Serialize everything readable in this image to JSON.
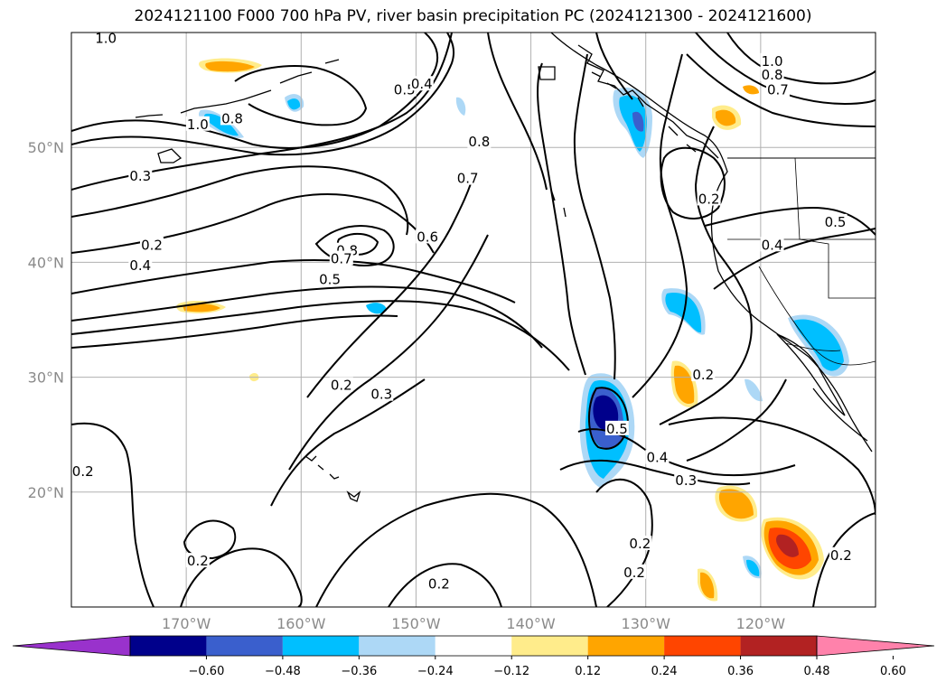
{
  "title": "2024121100 F000 700 hPa PV, river basin precipitation PC (2024121300 - 2024121600)",
  "map": {
    "lon_range": [
      -180,
      -110
    ],
    "lat_range": [
      10,
      60
    ],
    "lat_ticks": [
      {
        "value": 50,
        "label": "50°N"
      },
      {
        "value": 40,
        "label": "40°N"
      },
      {
        "value": 30,
        "label": "30°N"
      },
      {
        "value": 20,
        "label": "20°N"
      }
    ],
    "lon_ticks": [
      {
        "value": -170,
        "label": "170°W"
      },
      {
        "value": -160,
        "label": "160°W"
      },
      {
        "value": -150,
        "label": "150°W"
      },
      {
        "value": -140,
        "label": "140°W"
      },
      {
        "value": -130,
        "label": "130°W"
      },
      {
        "value": -120,
        "label": "120°W"
      }
    ],
    "grid": true,
    "contour_labels": [
      {
        "text": "1.0",
        "lon": -177,
        "lat": 59.5
      },
      {
        "text": "1.0",
        "lon": -169,
        "lat": 52
      },
      {
        "text": "0.8",
        "lon": -166,
        "lat": 52.5
      },
      {
        "text": "0.5",
        "lon": -151,
        "lat": 55
      },
      {
        "text": "0.4",
        "lon": -149.5,
        "lat": 55.5
      },
      {
        "text": "0.8",
        "lon": -144.5,
        "lat": 50.5
      },
      {
        "text": "0.7",
        "lon": -145.5,
        "lat": 47.3
      },
      {
        "text": "0.3",
        "lon": -174,
        "lat": 47.5
      },
      {
        "text": "0.2",
        "lon": -173,
        "lat": 41.5
      },
      {
        "text": "0.4",
        "lon": -174,
        "lat": 39.7
      },
      {
        "text": "0.8",
        "lon": -156,
        "lat": 41
      },
      {
        "text": "0.7",
        "lon": -156.5,
        "lat": 40.3
      },
      {
        "text": "0.6",
        "lon": -149,
        "lat": 42.2
      },
      {
        "text": "0.5",
        "lon": -157.5,
        "lat": 38.5
      },
      {
        "text": "1.0",
        "lon": -119,
        "lat": 57.5
      },
      {
        "text": "0.8",
        "lon": -119,
        "lat": 56.3
      },
      {
        "text": "0.7",
        "lon": -118.5,
        "lat": 55
      },
      {
        "text": "0.2",
        "lon": -124.5,
        "lat": 45.5
      },
      {
        "text": "0.4",
        "lon": -119,
        "lat": 41.5
      },
      {
        "text": "0.5",
        "lon": -113.5,
        "lat": 43.5
      },
      {
        "text": "0.2",
        "lon": -156.5,
        "lat": 29.3
      },
      {
        "text": "0.3",
        "lon": -153,
        "lat": 28.5
      },
      {
        "text": "0.2",
        "lon": -125,
        "lat": 30.2
      },
      {
        "text": "0.5",
        "lon": -132.5,
        "lat": 25.5
      },
      {
        "text": "0.4",
        "lon": -129,
        "lat": 23
      },
      {
        "text": "0.3",
        "lon": -126.5,
        "lat": 21
      },
      {
        "text": "0.2",
        "lon": -179,
        "lat": 21.8
      },
      {
        "text": "0.2",
        "lon": -169,
        "lat": 14
      },
      {
        "text": "0.2",
        "lon": -130.5,
        "lat": 15.5
      },
      {
        "text": "0.2",
        "lon": -131,
        "lat": 13
      },
      {
        "text": "0.2",
        "lon": -148,
        "lat": 12
      },
      {
        "text": "0.2",
        "lon": -113,
        "lat": 14.5
      }
    ]
  },
  "colorbar": {
    "colors": [
      "#9932cc",
      "#00008b",
      "#3a5fcd",
      "#00bfff",
      "#add8f6",
      "#ffffff",
      "#ffec8b",
      "#ffa500",
      "#ff4500",
      "#b22222",
      "#ff82ab"
    ],
    "tick_values": [
      -0.6,
      -0.48,
      -0.36,
      -0.24,
      -0.12,
      0.12,
      0.24,
      0.36,
      0.48,
      0.6
    ],
    "tick_labels": [
      "−0.60",
      "−0.48",
      "−0.36",
      "−0.24",
      "−0.12",
      "0.12",
      "0.24",
      "0.36",
      "0.48",
      "0.60"
    ]
  }
}
